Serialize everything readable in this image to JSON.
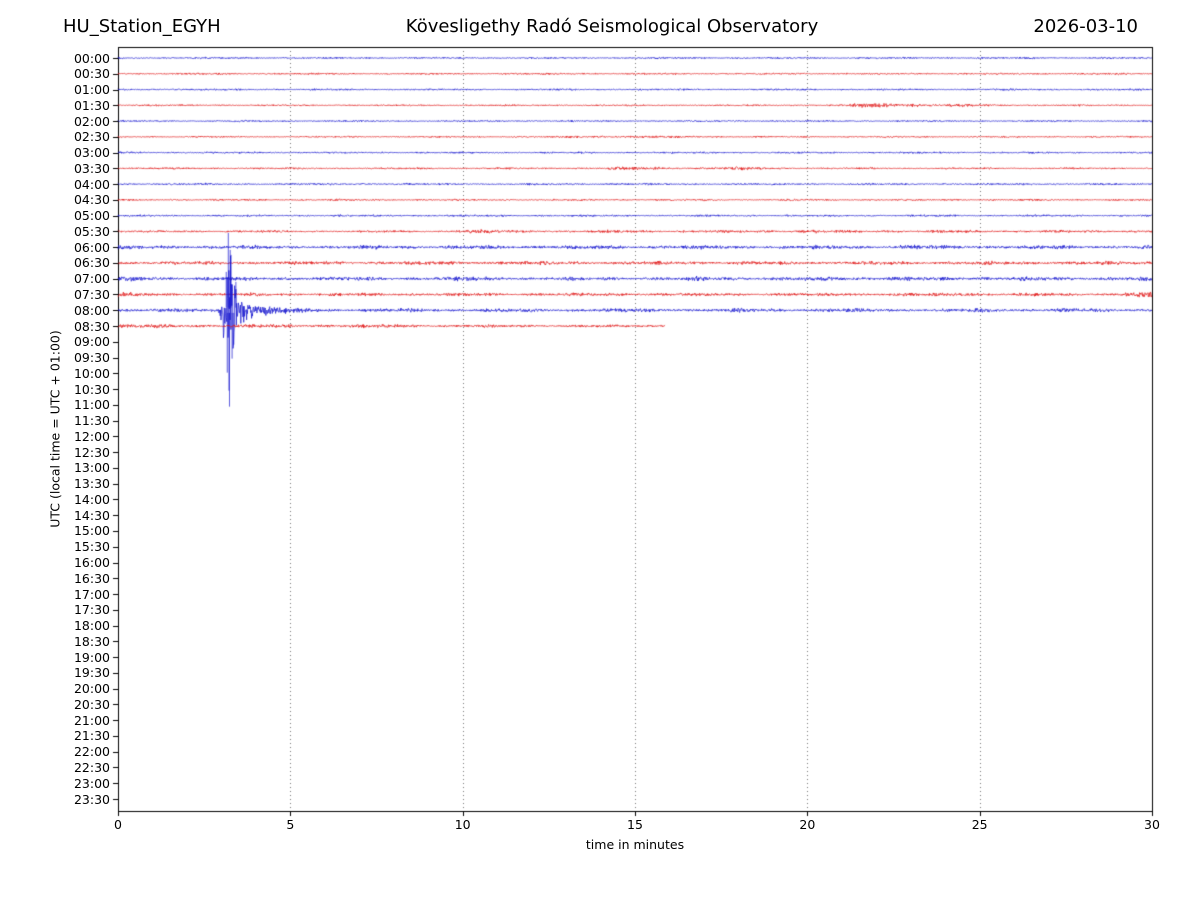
{
  "chart_data": {
    "type": "line",
    "subtype": "helicorder-dayplot",
    "station": "HU_Station_EGYH",
    "title": "Kövesligethy Radó Seismological Observatory",
    "date": "2026-03-10",
    "xlabel": "time in minutes",
    "ylabel": "UTC (local time = UTC + 01:00)",
    "xlim": [
      0,
      30
    ],
    "x_ticks": [
      0,
      5,
      10,
      15,
      20,
      25,
      30
    ],
    "grid_x": [
      5,
      10,
      15,
      20,
      25
    ],
    "row_interval_minutes": 30,
    "grid_on": true,
    "legend": null,
    "colors": {
      "blue": "#1414cf",
      "red": "#e01212",
      "grid": "#777777",
      "axis": "#000000",
      "background": "#ffffff",
      "text": "#000000"
    },
    "rows": [
      {
        "label": "00:00",
        "color": "blue",
        "segments": [
          [
            0,
            30,
            0.9
          ]
        ]
      },
      {
        "label": "00:30",
        "color": "red",
        "segments": [
          [
            0,
            30,
            0.9
          ]
        ]
      },
      {
        "label": "01:00",
        "color": "blue",
        "segments": [
          [
            0,
            30,
            0.9
          ]
        ]
      },
      {
        "label": "01:30",
        "color": "red",
        "segments": [
          [
            0,
            21.2,
            0.85
          ],
          [
            21.2,
            23.2,
            2.4
          ],
          [
            23.2,
            25.3,
            1.5
          ],
          [
            25.3,
            30,
            0.85
          ]
        ]
      },
      {
        "label": "02:00",
        "color": "blue",
        "segments": [
          [
            0,
            30,
            0.85
          ]
        ]
      },
      {
        "label": "02:30",
        "color": "red",
        "segments": [
          [
            0,
            13,
            0.8
          ],
          [
            13,
            15,
            1.5
          ],
          [
            15,
            17.5,
            1.15
          ],
          [
            17.5,
            30,
            0.8
          ]
        ]
      },
      {
        "label": "03:00",
        "color": "blue",
        "segments": [
          [
            0,
            30,
            0.95
          ]
        ]
      },
      {
        "label": "03:30",
        "color": "red",
        "segments": [
          [
            0,
            14.2,
            0.9
          ],
          [
            14.2,
            15.7,
            1.6
          ],
          [
            15.7,
            16.4,
            1.1
          ],
          [
            16.4,
            18.8,
            1.5
          ],
          [
            18.8,
            30,
            0.9
          ]
        ]
      },
      {
        "label": "04:00",
        "color": "blue",
        "segments": [
          [
            0,
            30,
            1.0
          ]
        ]
      },
      {
        "label": "04:30",
        "color": "red",
        "segments": [
          [
            0,
            30,
            0.9
          ]
        ]
      },
      {
        "label": "05:00",
        "color": "blue",
        "segments": [
          [
            0,
            30,
            1.0
          ]
        ]
      },
      {
        "label": "05:30",
        "color": "red",
        "segments": [
          [
            0,
            9.8,
            1.15
          ],
          [
            9.8,
            10.8,
            2.2
          ],
          [
            10.8,
            19.4,
            1.35
          ],
          [
            19.4,
            20.3,
            1.9
          ],
          [
            20.3,
            30,
            1.35
          ]
        ]
      },
      {
        "label": "06:00",
        "color": "blue",
        "segments": [
          [
            0,
            22.5,
            1.9
          ],
          [
            22.5,
            24,
            2.4
          ],
          [
            24,
            30,
            1.9
          ]
        ]
      },
      {
        "label": "06:30",
        "color": "red",
        "segments": [
          [
            0,
            30,
            1.8
          ]
        ]
      },
      {
        "label": "07:00",
        "color": "blue",
        "segments": [
          [
            0,
            1.2,
            2.3
          ],
          [
            1.2,
            9.5,
            1.8
          ],
          [
            9.5,
            11,
            2.3
          ],
          [
            11,
            16.4,
            1.9
          ],
          [
            16.4,
            17.3,
            2.3
          ],
          [
            17.3,
            20.4,
            1.9
          ],
          [
            20.4,
            21.5,
            2.3
          ],
          [
            21.5,
            30,
            1.9
          ]
        ]
      },
      {
        "label": "07:30",
        "color": "red",
        "segments": [
          [
            0,
            0.6,
            2.2
          ],
          [
            0.6,
            24.2,
            1.6
          ],
          [
            24.2,
            25.0,
            2.3
          ],
          [
            25.0,
            29.2,
            1.6
          ],
          [
            29.2,
            30,
            2.8
          ]
        ]
      },
      {
        "label": "08:00",
        "color": "blue",
        "segments": [
          [
            0,
            2.85,
            1.7
          ],
          [
            5.8,
            30,
            1.8
          ]
        ],
        "event": {
          "start": 2.85,
          "rise_end": 3.05,
          "rise_to": 12,
          "burst_center": 3.25,
          "burst_sigma": 0.1,
          "burst_peak": 58,
          "burst_end": 3.5,
          "decay_base": 12,
          "decay_tau": 0.5,
          "end": 5.8,
          "down_factor": 1.25,
          "spikes": [
            [
              3.14,
              38
            ],
            [
              3.17,
              -62
            ],
            [
              3.2,
              77
            ],
            [
              3.22,
              -80
            ],
            [
              3.235,
              -96
            ],
            [
              3.255,
              60
            ],
            [
              3.28,
              55
            ],
            [
              3.31,
              -48
            ],
            [
              3.36,
              -34
            ],
            [
              3.42,
              28
            ]
          ]
        }
      },
      {
        "label": "08:30",
        "color": "red",
        "segments": [
          [
            0,
            9,
            1.8
          ],
          [
            9,
            15.87,
            1.4
          ]
        ]
      },
      {
        "label": "09:00",
        "color": "blue",
        "segments": []
      },
      {
        "label": "09:30",
        "color": "red",
        "segments": []
      },
      {
        "label": "10:00",
        "color": "blue",
        "segments": []
      },
      {
        "label": "10:30",
        "color": "red",
        "segments": []
      },
      {
        "label": "11:00",
        "color": "blue",
        "segments": []
      },
      {
        "label": "11:30",
        "color": "red",
        "segments": []
      },
      {
        "label": "12:00",
        "color": "blue",
        "segments": []
      },
      {
        "label": "12:30",
        "color": "red",
        "segments": []
      },
      {
        "label": "13:00",
        "color": "blue",
        "segments": []
      },
      {
        "label": "13:30",
        "color": "red",
        "segments": []
      },
      {
        "label": "14:00",
        "color": "blue",
        "segments": []
      },
      {
        "label": "14:30",
        "color": "red",
        "segments": []
      },
      {
        "label": "15:00",
        "color": "blue",
        "segments": []
      },
      {
        "label": "15:30",
        "color": "red",
        "segments": []
      },
      {
        "label": "16:00",
        "color": "blue",
        "segments": []
      },
      {
        "label": "16:30",
        "color": "red",
        "segments": []
      },
      {
        "label": "17:00",
        "color": "blue",
        "segments": []
      },
      {
        "label": "17:30",
        "color": "red",
        "segments": []
      },
      {
        "label": "18:00",
        "color": "blue",
        "segments": []
      },
      {
        "label": "18:30",
        "color": "red",
        "segments": []
      },
      {
        "label": "19:00",
        "color": "blue",
        "segments": []
      },
      {
        "label": "19:30",
        "color": "red",
        "segments": []
      },
      {
        "label": "20:00",
        "color": "blue",
        "segments": []
      },
      {
        "label": "20:30",
        "color": "red",
        "segments": []
      },
      {
        "label": "21:00",
        "color": "blue",
        "segments": []
      },
      {
        "label": "21:30",
        "color": "red",
        "segments": []
      },
      {
        "label": "22:00",
        "color": "blue",
        "segments": []
      },
      {
        "label": "22:30",
        "color": "red",
        "segments": []
      },
      {
        "label": "23:00",
        "color": "blue",
        "segments": []
      },
      {
        "label": "23:30",
        "color": "red",
        "segments": []
      }
    ]
  }
}
